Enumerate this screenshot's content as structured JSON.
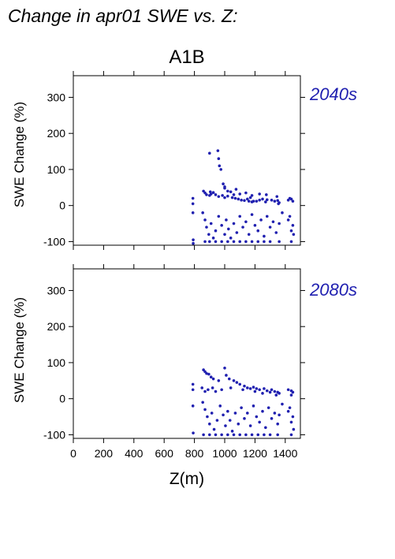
{
  "title": "Change in apr01 SWE vs. Z:",
  "scenario": "A1B",
  "accent_color": "#2020b0",
  "chart_data": [
    {
      "type": "scatter",
      "period": "2040s",
      "xlabel": "",
      "ylabel": "SWE Change (%)",
      "xlim": [
        0,
        1500
      ],
      "ylim": [
        -110,
        360
      ],
      "xticks": [
        0,
        200,
        400,
        600,
        800,
        1000,
        1200,
        1400
      ],
      "yticks": [
        -100,
        0,
        100,
        200,
        300
      ],
      "grid": false,
      "series": [
        {
          "color": "#2020b0",
          "points": [
            [
              790,
              20
            ],
            [
              790,
              5
            ],
            [
              790,
              -20
            ],
            [
              792,
              -95
            ],
            [
              792,
              -105
            ],
            [
              860,
              40
            ],
            [
              870,
              35
            ],
            [
              880,
              30
            ],
            [
              900,
              28
            ],
            [
              905,
              38
            ],
            [
              910,
              32
            ],
            [
              925,
              36
            ],
            [
              940,
              30
            ],
            [
              960,
              25
            ],
            [
              985,
              28
            ],
            [
              1000,
              22
            ],
            [
              1020,
              26
            ],
            [
              1050,
              22
            ],
            [
              1070,
              20
            ],
            [
              1090,
              18
            ],
            [
              1110,
              15
            ],
            [
              1130,
              14
            ],
            [
              1150,
              18
            ],
            [
              1160,
              12
            ],
            [
              1170,
              22
            ],
            [
              1180,
              10
            ],
            [
              1190,
              12
            ],
            [
              1210,
              12
            ],
            [
              1230,
              15
            ],
            [
              1250,
              18
            ],
            [
              1270,
              10
            ],
            [
              1280,
              16
            ],
            [
              1310,
              15
            ],
            [
              1330,
              12
            ],
            [
              1350,
              14
            ],
            [
              1355,
              5
            ],
            [
              1360,
              8
            ],
            [
              1420,
              15
            ],
            [
              1430,
              20
            ],
            [
              1440,
              18
            ],
            [
              1450,
              12
            ],
            [
              900,
              145
            ],
            [
              955,
              152
            ],
            [
              960,
              130
            ],
            [
              965,
              110
            ],
            [
              975,
              100
            ],
            [
              990,
              60
            ],
            [
              1000,
              52
            ],
            [
              1000,
              48
            ],
            [
              1040,
              38
            ],
            [
              1075,
              45
            ],
            [
              1020,
              40
            ],
            [
              1060,
              30
            ],
            [
              1100,
              32
            ],
            [
              1140,
              35
            ],
            [
              1180,
              28
            ],
            [
              1230,
              32
            ],
            [
              1275,
              30
            ],
            [
              1345,
              25
            ],
            [
              855,
              -20
            ],
            [
              870,
              -40
            ],
            [
              880,
              -60
            ],
            [
              895,
              -80
            ],
            [
              910,
              -50
            ],
            [
              925,
              -90
            ],
            [
              940,
              -70
            ],
            [
              960,
              -30
            ],
            [
              980,
              -55
            ],
            [
              1000,
              -80
            ],
            [
              1010,
              -40
            ],
            [
              1025,
              -65
            ],
            [
              1040,
              -90
            ],
            [
              1060,
              -50
            ],
            [
              1080,
              -75
            ],
            [
              1100,
              -30
            ],
            [
              1120,
              -60
            ],
            [
              1140,
              -45
            ],
            [
              1160,
              -80
            ],
            [
              1180,
              -25
            ],
            [
              1200,
              -55
            ],
            [
              1220,
              -70
            ],
            [
              1240,
              -40
            ],
            [
              1260,
              -85
            ],
            [
              1280,
              -30
            ],
            [
              1300,
              -60
            ],
            [
              1320,
              -45
            ],
            [
              1340,
              -75
            ],
            [
              1360,
              -50
            ],
            [
              1380,
              -20
            ],
            [
              1420,
              -40
            ],
            [
              1440,
              -70
            ],
            [
              1450,
              -55
            ],
            [
              1430,
              -30
            ],
            [
              1455,
              -80
            ],
            [
              870,
              -100
            ],
            [
              900,
              -100
            ],
            [
              940,
              -100
            ],
            [
              980,
              -100
            ],
            [
              1020,
              -100
            ],
            [
              1060,
              -100
            ],
            [
              1100,
              -100
            ],
            [
              1140,
              -100
            ],
            [
              1180,
              -100
            ],
            [
              1220,
              -100
            ],
            [
              1260,
              -100
            ],
            [
              1300,
              -100
            ],
            [
              1360,
              -100
            ],
            [
              1440,
              -100
            ]
          ]
        }
      ]
    },
    {
      "type": "scatter",
      "period": "2080s",
      "xlabel": "Z(m)",
      "ylabel": "SWE Change (%)",
      "xlim": [
        0,
        1500
      ],
      "ylim": [
        -110,
        360
      ],
      "xticks": [
        0,
        200,
        400,
        600,
        800,
        1000,
        1200,
        1400
      ],
      "yticks": [
        -100,
        0,
        100,
        200,
        300
      ],
      "grid": false,
      "series": [
        {
          "color": "#2020b0",
          "points": [
            [
              790,
              40
            ],
            [
              790,
              25
            ],
            [
              790,
              -20
            ],
            [
              792,
              -95
            ],
            [
              860,
              80
            ],
            [
              870,
              75
            ],
            [
              880,
              70
            ],
            [
              895,
              68
            ],
            [
              910,
              60
            ],
            [
              925,
              55
            ],
            [
              960,
              50
            ],
            [
              1000,
              85
            ],
            [
              1010,
              65
            ],
            [
              1030,
              55
            ],
            [
              1060,
              50
            ],
            [
              1080,
              45
            ],
            [
              1100,
              40
            ],
            [
              1130,
              35
            ],
            [
              1150,
              30
            ],
            [
              1170,
              28
            ],
            [
              1190,
              32
            ],
            [
              1210,
              28
            ],
            [
              1230,
              25
            ],
            [
              1260,
              28
            ],
            [
              1280,
              22
            ],
            [
              1310,
              25
            ],
            [
              1330,
              20
            ],
            [
              1350,
              18
            ],
            [
              1360,
              15
            ],
            [
              1420,
              25
            ],
            [
              1440,
              22
            ],
            [
              1450,
              18
            ],
            [
              850,
              30
            ],
            [
              870,
              20
            ],
            [
              890,
              25
            ],
            [
              920,
              30
            ],
            [
              940,
              20
            ],
            [
              980,
              25
            ],
            [
              1040,
              30
            ],
            [
              1120,
              25
            ],
            [
              1200,
              20
            ],
            [
              1250,
              15
            ],
            [
              1300,
              18
            ],
            [
              1340,
              10
            ],
            [
              1440,
              10
            ],
            [
              855,
              -10
            ],
            [
              870,
              -30
            ],
            [
              885,
              -50
            ],
            [
              900,
              -70
            ],
            [
              915,
              -40
            ],
            [
              930,
              -85
            ],
            [
              950,
              -60
            ],
            [
              970,
              -20
            ],
            [
              990,
              -45
            ],
            [
              1005,
              -75
            ],
            [
              1020,
              -35
            ],
            [
              1035,
              -60
            ],
            [
              1050,
              -90
            ],
            [
              1070,
              -40
            ],
            [
              1090,
              -70
            ],
            [
              1110,
              -25
            ],
            [
              1130,
              -55
            ],
            [
              1150,
              -40
            ],
            [
              1170,
              -75
            ],
            [
              1190,
              -20
            ],
            [
              1210,
              -50
            ],
            [
              1230,
              -65
            ],
            [
              1250,
              -35
            ],
            [
              1270,
              -80
            ],
            [
              1290,
              -25
            ],
            [
              1310,
              -55
            ],
            [
              1330,
              -40
            ],
            [
              1350,
              -70
            ],
            [
              1360,
              -45
            ],
            [
              1380,
              -15
            ],
            [
              1420,
              -35
            ],
            [
              1440,
              -65
            ],
            [
              1450,
              -50
            ],
            [
              1430,
              -25
            ],
            [
              1455,
              -85
            ],
            [
              860,
              -100
            ],
            [
              900,
              -100
            ],
            [
              940,
              -100
            ],
            [
              980,
              -100
            ],
            [
              1020,
              -100
            ],
            [
              1060,
              -100
            ],
            [
              1100,
              -100
            ],
            [
              1140,
              -100
            ],
            [
              1180,
              -100
            ],
            [
              1220,
              -100
            ],
            [
              1260,
              -100
            ],
            [
              1300,
              -100
            ],
            [
              1350,
              -100
            ],
            [
              1440,
              -100
            ]
          ]
        }
      ]
    }
  ]
}
